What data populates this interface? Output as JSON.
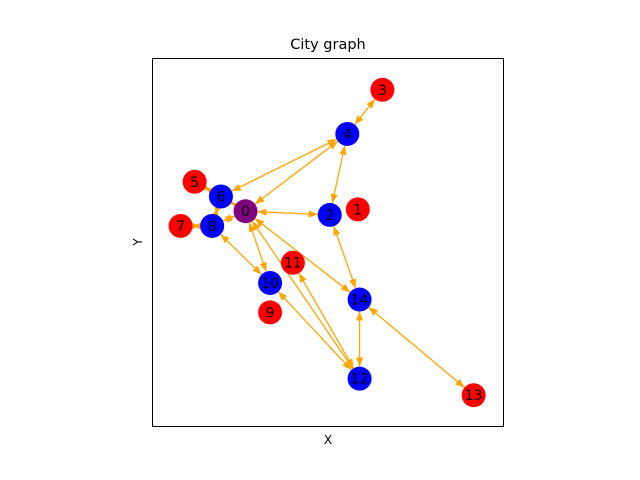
{
  "figure": {
    "title": "City graph",
    "xlabel": "X",
    "ylabel": "Y"
  },
  "colors": {
    "edge": "#FFA500",
    "red_node": "#FF0000",
    "blue_node": "#0000FF",
    "purple_node": "#800080"
  },
  "chart_data": {
    "type": "network",
    "nodes": [
      {
        "id": "0",
        "label": "0",
        "color": "purple",
        "x": 0.265,
        "y": 0.585
      },
      {
        "id": "1",
        "label": "1",
        "color": "red",
        "x": 0.585,
        "y": 0.59
      },
      {
        "id": "2",
        "label": "2",
        "color": "blue",
        "x": 0.505,
        "y": 0.575
      },
      {
        "id": "3",
        "label": "3",
        "color": "red",
        "x": 0.655,
        "y": 0.915
      },
      {
        "id": "4",
        "label": "4",
        "color": "blue",
        "x": 0.555,
        "y": 0.795
      },
      {
        "id": "5",
        "label": "5",
        "color": "red",
        "x": 0.12,
        "y": 0.665
      },
      {
        "id": "6",
        "label": "6",
        "color": "blue",
        "x": 0.195,
        "y": 0.625
      },
      {
        "id": "7",
        "label": "7",
        "color": "red",
        "x": 0.08,
        "y": 0.545
      },
      {
        "id": "8",
        "label": "8",
        "color": "blue",
        "x": 0.17,
        "y": 0.545
      },
      {
        "id": "9",
        "label": "9",
        "color": "red",
        "x": 0.335,
        "y": 0.31
      },
      {
        "id": "10",
        "label": "10",
        "color": "blue",
        "x": 0.335,
        "y": 0.39
      },
      {
        "id": "11",
        "label": "11",
        "color": "red",
        "x": 0.4,
        "y": 0.445
      },
      {
        "id": "12",
        "label": "12",
        "color": "blue",
        "x": 0.59,
        "y": 0.13
      },
      {
        "id": "13",
        "label": "13",
        "color": "red",
        "x": 0.915,
        "y": 0.085
      },
      {
        "id": "14",
        "label": "14",
        "color": "blue",
        "x": 0.59,
        "y": 0.345
      }
    ],
    "edges": [
      {
        "from": "0",
        "to": "2"
      },
      {
        "from": "0",
        "to": "4"
      },
      {
        "from": "0",
        "to": "6"
      },
      {
        "from": "0",
        "to": "8"
      },
      {
        "from": "0",
        "to": "10"
      },
      {
        "from": "0",
        "to": "12"
      },
      {
        "from": "0",
        "to": "14"
      },
      {
        "from": "2",
        "to": "4"
      },
      {
        "from": "2",
        "to": "14"
      },
      {
        "from": "3",
        "to": "4"
      },
      {
        "from": "4",
        "to": "6"
      },
      {
        "from": "5",
        "to": "6"
      },
      {
        "from": "6",
        "to": "8"
      },
      {
        "from": "7",
        "to": "8"
      },
      {
        "from": "8",
        "to": "10"
      },
      {
        "from": "10",
        "to": "12"
      },
      {
        "from": "11",
        "to": "12"
      },
      {
        "from": "12",
        "to": "14"
      },
      {
        "from": "13",
        "to": "14"
      }
    ],
    "directed": "bidirectional",
    "xlim": [
      0,
      1
    ],
    "ylim": [
      0,
      1
    ],
    "grid": false,
    "legend": "none"
  }
}
